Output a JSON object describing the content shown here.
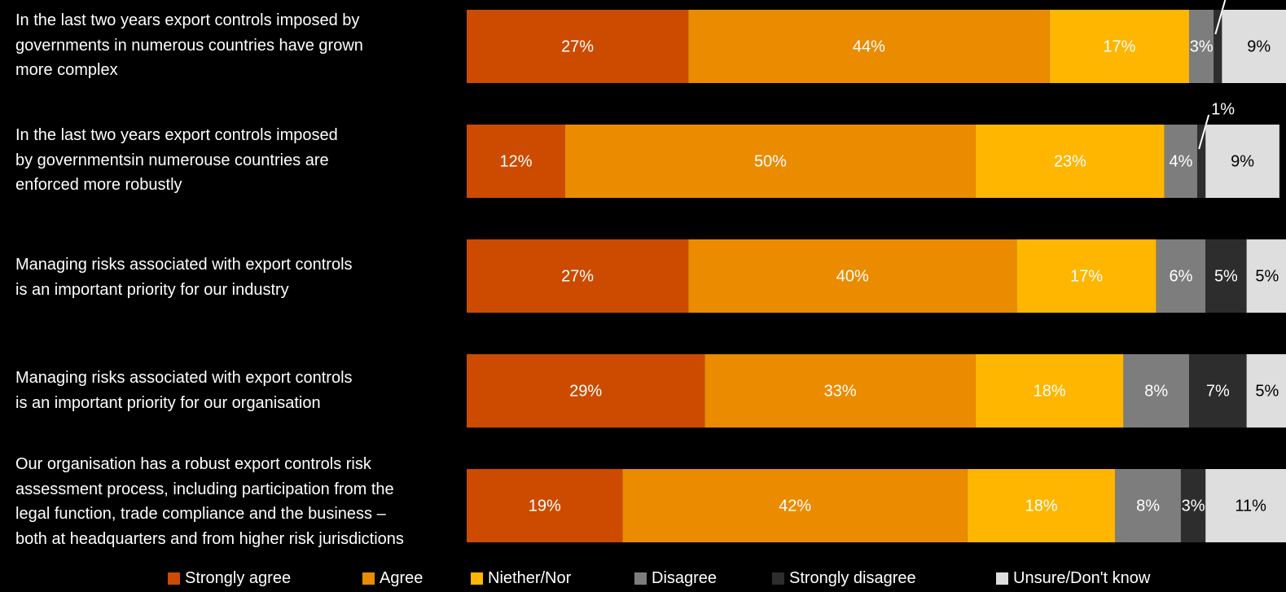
{
  "chart_data": {
    "type": "bar",
    "orientation": "horizontal",
    "stacked": true,
    "categories": [
      "In the last two years export controls imposed by governments in numerous countries have grown more complex",
      "In the last two years export controls imposed by governmentsin numerouse countries are enforced more robustly",
      "Managing risks associated with export controls is an important priority for our industry",
      "Managing risks associated with export controls is an important priority for our organisation",
      "Our organisation has a robust export controls risk assessment process, including participation from the legal function, trade compliance and the business – both at headquarters and from higher risk jurisdictions"
    ],
    "series": [
      {
        "name": "Strongly agree",
        "color": "#cc4b00",
        "values": [
          27,
          12,
          27,
          29,
          19
        ]
      },
      {
        "name": "Agree",
        "color": "#eb8b00",
        "values": [
          44,
          50,
          40,
          33,
          42
        ]
      },
      {
        "name": "Niether/Nor",
        "color": "#ffb600",
        "values": [
          17,
          23,
          17,
          18,
          18
        ]
      },
      {
        "name": "Disagree",
        "color": "#7d7d7d",
        "values": [
          3,
          4,
          6,
          8,
          8
        ]
      },
      {
        "name": "Strongly disagree",
        "color": "#2d2d2d",
        "values": [
          1,
          1,
          5,
          7,
          3
        ]
      },
      {
        "name": "Unsure/Don't know",
        "color": "#dedede",
        "values": [
          9,
          9,
          5,
          5,
          11
        ]
      }
    ],
    "data_label_suffix": "%",
    "legend_position": "bottom",
    "grid": false
  },
  "labels": {
    "cat0": [
      "In the last two years export controls imposed by",
      "governments in numerous countries have grown",
      "more complex"
    ],
    "cat1": [
      "In the last two years export controls imposed",
      "by governmentsin numerouse countries are",
      "enforced more robustly"
    ],
    "cat2": [
      "Managing risks associated with export controls",
      "is an important priority for our industry"
    ],
    "cat3": [
      "Managing risks associated with export controls",
      "is an important priority for our organisation"
    ],
    "cat4": [
      "Our organisation has a robust export controls risk",
      "assessment process, including participation from the",
      "legal function, trade compliance and the business –",
      "both at headquarters and from higher risk jurisdictions"
    ]
  }
}
